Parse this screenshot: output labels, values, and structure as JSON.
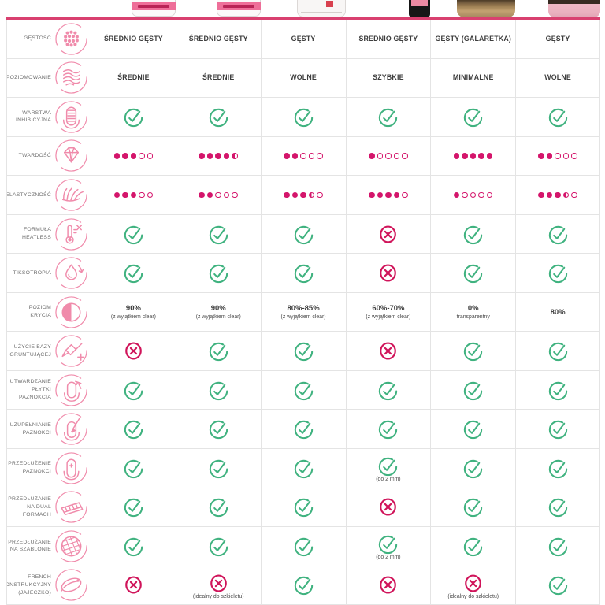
{
  "colors": {
    "accent_pink": "#d94070",
    "icon_pink": "#f08bab",
    "dot_magenta": "#d4156b",
    "check_green": "#3fb27f",
    "cross_red": "#d0145a",
    "grid": "#e4e4e4",
    "label_gray": "#6f6f6f",
    "value_dark": "#3d3d3d"
  },
  "header": {
    "products": [
      {
        "id": "product-1",
        "jar_style": "white-jar-pink-label"
      },
      {
        "id": "product-2",
        "jar_style": "white-jar-pink-label"
      },
      {
        "id": "product-3",
        "jar_style": "white-jar-red-badge"
      },
      {
        "id": "product-4",
        "jar_style": "black-bottle"
      },
      {
        "id": "product-5",
        "jar_style": "bronze-jar"
      },
      {
        "id": "product-6",
        "jar_style": "pink-jar"
      }
    ]
  },
  "chart_data": {
    "type": "table",
    "columns": [
      "product-1",
      "product-2",
      "product-3",
      "product-4",
      "product-5",
      "product-6"
    ],
    "dots_scale_max": 5,
    "rows": [
      {
        "id": "gestosc",
        "label": "GĘSTOŚĆ",
        "icon": "density-dots-icon",
        "type": "text",
        "values": [
          "ŚREDNIO GĘSTY",
          "ŚREDNIO GĘSTY",
          "GĘSTY",
          "ŚREDNIO GĘSTY",
          "GĘSTY (GALARETKA)",
          "GĘSTY"
        ]
      },
      {
        "id": "poziomowanie",
        "label": "POZIOMOWANIE",
        "icon": "leveling-waves-icon",
        "type": "text",
        "values": [
          "ŚREDNIE",
          "ŚREDNIE",
          "WOLNE",
          "SZYBKIE",
          "MINIMALNE",
          "WOLNE"
        ]
      },
      {
        "id": "warstwa-inhibicyjna",
        "label": "WARSTWA INHIBICYJNA",
        "icon": "inhibition-layer-icon",
        "type": "marks",
        "values": [
          "check",
          "check",
          "check",
          "check",
          "check",
          "check"
        ]
      },
      {
        "id": "twardosc",
        "label": "TWARDOŚĆ",
        "icon": "hardness-diamond-icon",
        "type": "dots",
        "values": [
          3,
          4.5,
          2,
          1,
          5,
          2
        ]
      },
      {
        "id": "elastycznosc",
        "label": "ELASTYCZNOŚĆ",
        "icon": "elasticity-fan-icon",
        "type": "dots",
        "values": [
          3,
          2,
          3.5,
          4,
          1,
          3.5
        ]
      },
      {
        "id": "formula-heatless",
        "label": "FORMUŁA HEATLESS",
        "icon": "heatless-thermometer-icon",
        "type": "marks",
        "values": [
          "check",
          "check",
          "check",
          "x",
          "check",
          "check"
        ]
      },
      {
        "id": "tiksotropia",
        "label": "TIKSOTROPIA",
        "icon": "thixotropy-drop-icon",
        "type": "marks",
        "values": [
          "check",
          "check",
          "check",
          "x",
          "check",
          "check"
        ]
      },
      {
        "id": "poziom-krycia",
        "label": "POZIOM KRYCIA",
        "icon": "coverage-half-circle-icon",
        "type": "coverage",
        "values": [
          {
            "main": "90%",
            "sub": "(z wyjątkiem clear)"
          },
          {
            "main": "90%",
            "sub": "(z wyjątkiem clear)"
          },
          {
            "main": "80%-85%",
            "sub": "(z wyjątkiem clear)"
          },
          {
            "main": "60%-70%",
            "sub": "(z wyjątkiem clear)"
          },
          {
            "main": "0%",
            "sub": "transparentny"
          },
          {
            "main": "80%",
            "sub": ""
          }
        ]
      },
      {
        "id": "uzycie-bazy-gruntujacej",
        "label": "UŻYCIE BAZY GRUNTUJĄCEJ",
        "icon": "base-coat-brush-icon",
        "type": "marks",
        "values": [
          "x",
          "check",
          "check",
          "x",
          "check",
          "check"
        ]
      },
      {
        "id": "utwardzanie-plytki-paznokcia",
        "label": "UTWARDZANIE PŁYTKI PAZNOKCIA",
        "icon": "nail-hardening-icon",
        "type": "marks",
        "values": [
          "check",
          "check",
          "check",
          "check",
          "check",
          "check"
        ]
      },
      {
        "id": "uzupelnianie-paznokci",
        "label": "UZUPEŁNIANIE PAZNOKCI",
        "icon": "nail-infill-icon",
        "type": "marks",
        "values": [
          "check",
          "check",
          "check",
          "check",
          "check",
          "check"
        ]
      },
      {
        "id": "przedluzenie-paznokci",
        "label": "PRZEDŁUŻENIE PAZNOKCI",
        "icon": "nail-extension-icon",
        "type": "marks",
        "values": [
          "check",
          "check",
          "check",
          {
            "mark": "check",
            "note": "(do 2 mm)"
          },
          "check",
          "check"
        ]
      },
      {
        "id": "przedluzanie-na-dual-formach",
        "label": "PRZEDŁUŻANIE NA DUAL FORMACH",
        "icon": "dual-forms-icon",
        "type": "marks",
        "values": [
          "check",
          "check",
          "check",
          "x",
          "check",
          "check"
        ]
      },
      {
        "id": "przedluzanie-na-szablonie",
        "label": "PRZEDŁUŻANIE NA SZABLONIE",
        "icon": "template-mesh-icon",
        "type": "marks",
        "values": [
          "check",
          "check",
          "check",
          {
            "mark": "check",
            "note": "(do 2 mm)"
          },
          "check",
          "check"
        ]
      },
      {
        "id": "french-konstrukcyjny",
        "label": "FRENCH KONSTRUKCYJNY (JAJECZKO)",
        "icon": "french-tip-icon",
        "type": "marks",
        "values": [
          "x",
          {
            "mark": "x",
            "note": "(idealny do szkieletu)"
          },
          "check",
          "x",
          {
            "mark": "x",
            "note": "(idealny do szkieletu)"
          },
          "check"
        ]
      }
    ]
  }
}
